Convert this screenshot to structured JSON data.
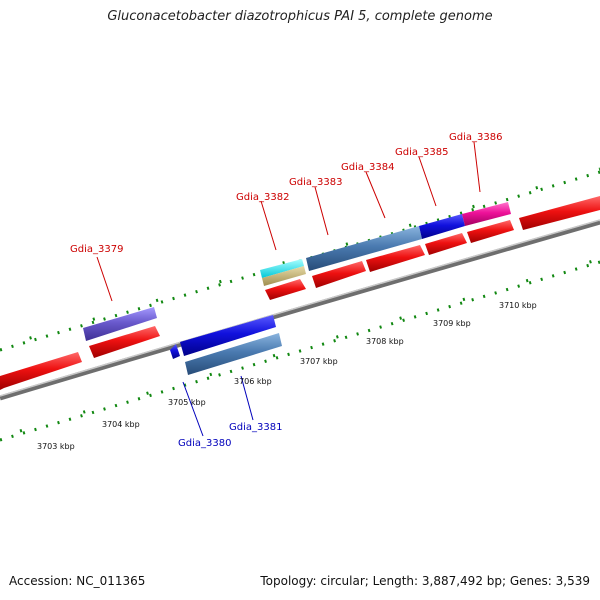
{
  "title": "Gluconacetobacter diazotrophicus PAI 5, complete genome",
  "footer": {
    "accession": "Accession: NC_011365",
    "summary": "Topology: circular; Length: 3,887,492 bp; Genes: 3,539"
  },
  "kbp_labels": [
    "3703 kbp",
    "3704 kbp",
    "3705 kbp",
    "3706 kbp",
    "3707 kbp",
    "3708 kbp",
    "3709 kbp",
    "3710 kbp"
  ],
  "gene_labels": {
    "gdia_3379": "Gdia_3379",
    "gdia_3380": "Gdia_3380",
    "gdia_3381": "Gdia_3381",
    "gdia_3382": "Gdia_3382",
    "gdia_3383": "Gdia_3383",
    "gdia_3384": "Gdia_3384",
    "gdia_3385": "Gdia_3385",
    "gdia_3386": "Gdia_3386"
  },
  "colors": {
    "cds_red": "#ee1111",
    "gene_blue": "#1111dd",
    "steel_blue": "#4a7ab0",
    "purple": "#6a5acd",
    "cyan": "#00e5ee",
    "khaki": "#c8b878",
    "magenta": "#ee1199",
    "backbone": "#888888",
    "tick_green": "#118811",
    "label_red": "#cc0000",
    "label_blue": "#0000bb"
  }
}
